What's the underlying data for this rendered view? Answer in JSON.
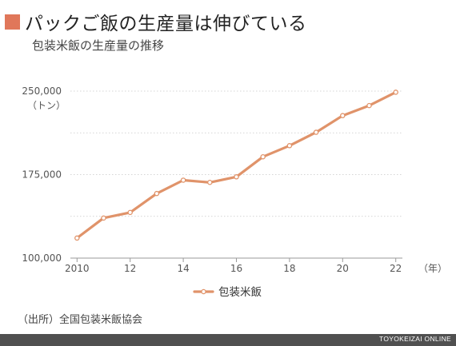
{
  "header": {
    "title": "パックご飯の生産量は伸びている",
    "subtitle": "包装米飯の生産量の推移",
    "accent_color": "#e0775a"
  },
  "chart_data": {
    "type": "line",
    "x": [
      2010,
      2011,
      2012,
      2013,
      2014,
      2015,
      2016,
      2017,
      2018,
      2019,
      2020,
      2021,
      2022
    ],
    "x_tick_labels": [
      "2010",
      "12",
      "14",
      "16",
      "18",
      "20",
      "22"
    ],
    "x_tick_values": [
      2010,
      2012,
      2014,
      2016,
      2018,
      2020,
      2022
    ],
    "x_unit": "（年）",
    "y_ticks": [
      "250,000",
      "175,000",
      "100,000"
    ],
    "y_tick_values": [
      250000,
      175000,
      100000
    ],
    "y_unit": "（トン）",
    "ylim": [
      100000,
      250000
    ],
    "xlim": [
      2009.75,
      2022.25
    ],
    "series": [
      {
        "name": "包装米飯",
        "color": "#e0936a",
        "values": [
          118000,
          136000,
          141000,
          158000,
          170000,
          168000,
          173000,
          191000,
          201000,
          213000,
          228000,
          237000,
          249000
        ]
      }
    ],
    "grid": "horizontal dotted",
    "legend_position": "bottom-center"
  },
  "source_text": "（出所）全国包装米飯協会",
  "footer_text": "TOYOKEIZAI ONLINE"
}
